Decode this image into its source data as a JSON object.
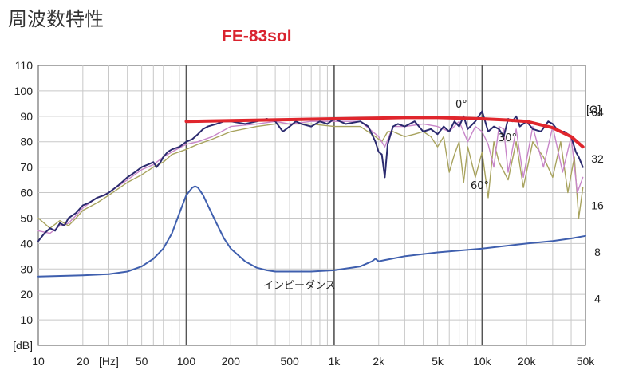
{
  "page": {
    "title": "周波数特性"
  },
  "chart_data": {
    "type": "line",
    "title": "FE-83sol",
    "x_scale": "log",
    "xlim": [
      10,
      50000
    ],
    "ylim": [
      0,
      110
    ],
    "y2_scale": "log",
    "y2lim": [
      2,
      128
    ],
    "grid": true,
    "x_tick_labels": [
      "10",
      "20",
      "[Hz]",
      "50",
      "100",
      "200",
      "500",
      "1k",
      "2k",
      "5k",
      "10k",
      "20k",
      "50k"
    ],
    "y_tick_labels": [
      "110",
      "100",
      "90",
      "80",
      "70",
      "60",
      "50",
      "40",
      "30",
      "20",
      "10",
      "[dB]"
    ],
    "y2_unit": "[Ω]",
    "y2_tick_labels": [
      "64",
      "32",
      "16",
      "8",
      "4"
    ],
    "colors": {
      "on_axis": "#2b2a6e",
      "deg30": "#c886c9",
      "deg60": "#a8a35e",
      "impedance": "#3f5fae",
      "highlight": "#e0262d",
      "title": "#d9232e"
    },
    "annotations": {
      "deg0": "0°",
      "deg30": "30°",
      "deg60": "60°",
      "impedance": "インピーダンス"
    },
    "series": [
      {
        "label": "0°",
        "x": [
          10,
          11,
          12,
          13,
          14,
          15,
          16,
          18,
          20,
          22,
          25,
          28,
          30,
          35,
          40,
          45,
          50,
          55,
          60,
          63,
          67,
          70,
          75,
          80,
          90,
          100,
          110,
          120,
          130,
          140,
          160,
          180,
          200,
          250,
          300,
          350,
          400,
          450,
          500,
          550,
          600,
          700,
          800,
          900,
          1000,
          1200,
          1500,
          1700,
          1900,
          2000,
          2100,
          2200,
          2300,
          2500,
          2700,
          3000,
          3500,
          4000,
          4500,
          5000,
          5500,
          6000,
          6500,
          7000,
          7500,
          8000,
          9000,
          10000,
          11000,
          12000,
          13000,
          14000,
          15000,
          16000,
          17000,
          18000,
          20000,
          22000,
          25000,
          28000,
          30000,
          33000,
          36000,
          40000,
          43000,
          45000,
          48000
        ],
        "y": [
          41,
          44,
          46,
          45,
          48,
          47,
          50,
          52,
          55,
          56,
          58,
          59,
          60,
          63,
          66,
          68,
          70,
          71,
          72,
          70,
          72,
          74,
          76,
          77,
          78,
          80,
          81,
          83,
          85,
          86,
          87,
          88,
          88,
          87,
          88,
          89,
          88,
          84,
          86,
          88,
          87,
          86,
          88,
          87,
          89,
          87,
          88,
          86,
          80,
          76,
          75,
          66,
          79,
          86,
          87,
          86,
          88,
          84,
          85,
          83,
          86,
          84,
          88,
          86,
          90,
          85,
          88,
          92,
          84,
          86,
          85,
          82,
          89,
          88,
          90,
          86,
          88,
          85,
          84,
          88,
          87,
          84,
          84,
          82,
          76,
          74,
          70
        ]
      },
      {
        "label": "30°",
        "x": [
          10,
          12,
          14,
          16,
          18,
          20,
          25,
          30,
          40,
          50,
          60,
          70,
          80,
          100,
          120,
          150,
          200,
          300,
          400,
          500,
          700,
          1000,
          1500,
          2000,
          2200,
          2500,
          3000,
          4000,
          5000,
          6000,
          7000,
          8000,
          9000,
          10000,
          11000,
          12000,
          13000,
          14000,
          15000,
          17000,
          19000,
          22000,
          26000,
          30000,
          35000,
          40000,
          44000,
          48000
        ],
        "y": [
          45,
          44,
          47,
          48,
          51,
          54,
          58,
          60,
          65,
          69,
          71,
          74,
          76,
          79,
          80,
          82,
          86,
          87,
          88,
          87,
          88,
          88,
          88,
          82,
          78,
          86,
          86,
          87,
          86,
          84,
          88,
          80,
          86,
          84,
          79,
          70,
          86,
          85,
          68,
          85,
          66,
          86,
          70,
          86,
          68,
          82,
          60,
          66
        ]
      },
      {
        "label": "60°",
        "x": [
          10,
          12,
          14,
          16,
          18,
          20,
          25,
          30,
          40,
          50,
          60,
          70,
          80,
          100,
          120,
          150,
          200,
          300,
          400,
          500,
          700,
          1000,
          1500,
          1900,
          2100,
          2300,
          2500,
          3000,
          3500,
          4000,
          4500,
          5000,
          5500,
          6000,
          6500,
          7000,
          7500,
          8000,
          9000,
          10000,
          11000,
          12000,
          13000,
          15000,
          17000,
          19000,
          22000,
          26000,
          30000,
          34000,
          38000,
          42000,
          45000,
          48000
        ],
        "y": [
          50,
          46,
          49,
          47,
          50,
          53,
          56,
          59,
          64,
          67,
          70,
          72,
          75,
          77,
          79,
          81,
          84,
          86,
          87,
          87,
          87,
          86,
          86,
          82,
          80,
          84,
          84,
          82,
          83,
          84,
          82,
          78,
          82,
          68,
          75,
          80,
          64,
          78,
          66,
          76,
          58,
          80,
          72,
          65,
          80,
          62,
          80,
          74,
          66,
          80,
          60,
          74,
          50,
          62
        ]
      },
      {
        "label": "インピーダンス",
        "x": [
          10,
          20,
          30,
          40,
          50,
          60,
          70,
          80,
          90,
          100,
          110,
          115,
          120,
          130,
          140,
          160,
          180,
          200,
          250,
          300,
          350,
          400,
          500,
          700,
          1000,
          1500,
          1800,
          1900,
          2000,
          2200,
          3000,
          5000,
          10000,
          20000,
          30000,
          40000,
          50000
        ],
        "y": [
          27,
          27.5,
          28,
          29,
          31,
          34,
          38,
          44,
          52,
          59,
          62,
          62.5,
          62,
          59,
          55,
          48,
          42,
          38,
          33,
          30.5,
          29.5,
          29,
          29,
          29,
          29.5,
          31,
          33,
          34,
          33,
          33.5,
          35,
          36.5,
          38,
          40,
          41,
          42,
          43
        ]
      },
      {
        "label": "",
        "x": [
          100,
          200,
          500,
          1000,
          2000,
          3000,
          5000,
          10000,
          15000,
          20000,
          30000,
          40000,
          48000
        ],
        "y": [
          88,
          88.3,
          88.7,
          89,
          89.3,
          89.5,
          89.5,
          89,
          88.5,
          88,
          85.5,
          82,
          78
        ]
      }
    ]
  }
}
